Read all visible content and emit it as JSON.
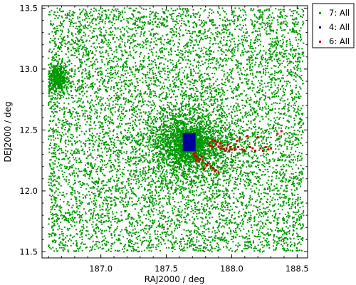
{
  "chart_data": {
    "type": "scatter",
    "title": "",
    "xlabel": "RAJ2000 / deg",
    "ylabel": "DEJ2000 / deg",
    "xlim": [
      186.55,
      188.58
    ],
    "ylim": [
      11.45,
      13.52
    ],
    "x_ticks": [
      187.0,
      187.5,
      188.0,
      188.5
    ],
    "x_tick_labels": [
      "187.0",
      "187.5",
      "188.0",
      "188.5"
    ],
    "y_ticks": [
      11.5,
      12.0,
      12.5,
      13.0,
      13.5
    ],
    "y_tick_labels": [
      "11.5",
      "12.0",
      "12.5",
      "13.0",
      "13.5"
    ],
    "grid": false,
    "legend_position": "outside-top-right",
    "series": [
      {
        "name": "7: All",
        "color": "#009900",
        "marker": "dot",
        "count_estimate": 12000,
        "extent": {
          "x": [
            186.6,
            188.55
          ],
          "y": [
            11.5,
            13.5
          ]
        },
        "density_peak": {
          "x": 187.68,
          "y": 12.38
        },
        "secondary_clump": {
          "x": 186.67,
          "y": 12.92
        }
      },
      {
        "name": "4: All",
        "color": "#000099",
        "marker": "dot",
        "box": {
          "x": [
            187.63,
            187.72
          ],
          "y": [
            12.33,
            12.47
          ]
        }
      },
      {
        "name": "6: All",
        "color": "#cc0000",
        "marker": "dot",
        "points": [
          [
            187.71,
            12.3
          ],
          [
            187.72,
            12.28
          ],
          [
            187.73,
            12.29
          ],
          [
            187.74,
            12.27
          ],
          [
            187.73,
            12.25
          ],
          [
            187.76,
            12.26
          ],
          [
            187.78,
            12.25
          ],
          [
            187.75,
            12.24
          ],
          [
            187.8,
            12.22
          ],
          [
            187.82,
            12.23
          ],
          [
            187.84,
            12.2
          ],
          [
            187.86,
            12.19
          ],
          [
            187.79,
            12.18
          ],
          [
            187.72,
            12.31
          ],
          [
            187.77,
            12.28
          ],
          [
            187.81,
            12.21
          ],
          [
            187.88,
            12.17
          ],
          [
            187.87,
            12.16
          ],
          [
            187.9,
            12.15
          ],
          [
            187.83,
            12.39
          ],
          [
            187.84,
            12.37
          ],
          [
            187.86,
            12.36
          ],
          [
            187.88,
            12.38
          ],
          [
            187.9,
            12.36
          ],
          [
            187.92,
            12.35
          ],
          [
            187.94,
            12.34
          ],
          [
            187.96,
            12.35
          ],
          [
            187.98,
            12.33
          ],
          [
            188.0,
            12.34
          ],
          [
            188.02,
            12.35
          ],
          [
            187.85,
            12.42
          ],
          [
            187.87,
            12.41
          ],
          [
            187.89,
            12.4
          ],
          [
            187.91,
            12.39
          ],
          [
            187.93,
            12.37
          ],
          [
            187.95,
            12.33
          ],
          [
            187.99,
            12.36
          ],
          [
            188.03,
            12.34
          ],
          [
            187.97,
            12.38
          ],
          [
            188.04,
            12.41
          ],
          [
            188.06,
            12.43
          ],
          [
            188.12,
            12.45
          ],
          [
            188.2,
            12.44
          ],
          [
            188.05,
            12.36
          ],
          [
            188.08,
            12.34
          ],
          [
            188.1,
            12.33
          ],
          [
            188.14,
            12.36
          ],
          [
            188.16,
            12.35
          ],
          [
            188.18,
            12.33
          ],
          [
            188.22,
            12.35
          ],
          [
            188.24,
            12.33
          ],
          [
            188.26,
            12.36
          ],
          [
            188.28,
            12.34
          ],
          [
            188.3,
            12.35
          ],
          [
            188.35,
            12.47
          ],
          [
            188.38,
            12.49
          ]
        ]
      }
    ]
  }
}
